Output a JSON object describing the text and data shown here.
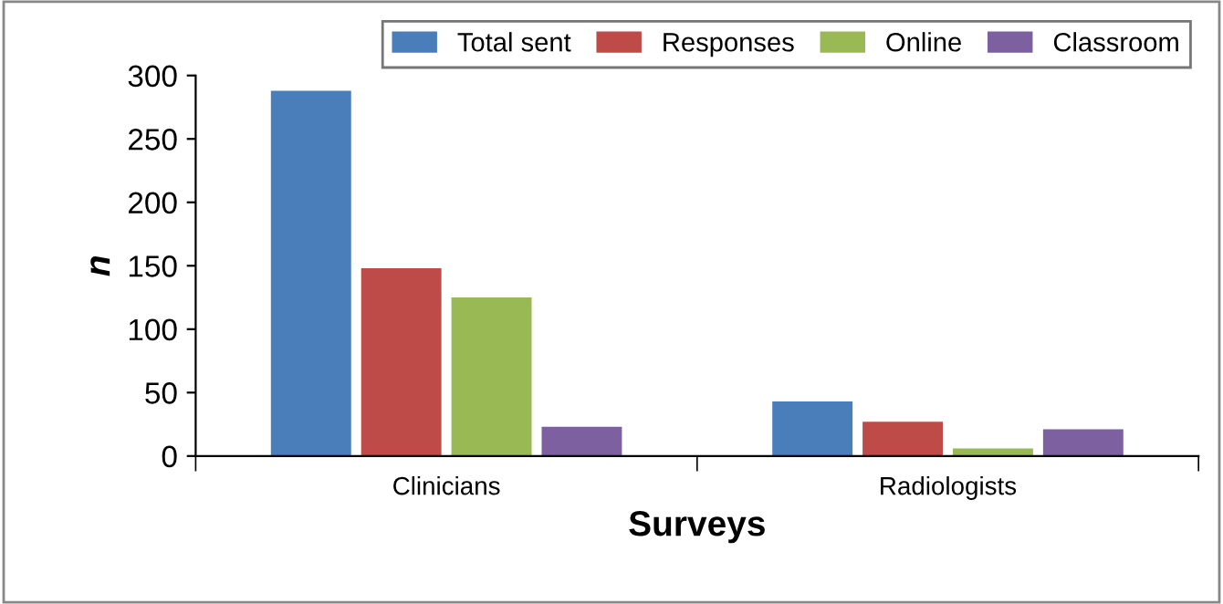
{
  "chart_data": {
    "type": "bar",
    "xlabel": "Surveys",
    "ylabel": "n",
    "categories": [
      "Clinicians",
      "Radiologists"
    ],
    "series": [
      {
        "name": "Total sent",
        "color": "#4a7ebb",
        "values": [
          288,
          43
        ]
      },
      {
        "name": "Responses",
        "color": "#be4b48",
        "values": [
          148,
          27
        ]
      },
      {
        "name": "Online",
        "color": "#98b954",
        "values": [
          125,
          6
        ]
      },
      {
        "name": "Classroom",
        "color": "#7d60a0",
        "values": [
          23,
          21
        ]
      }
    ],
    "ylim": [
      0,
      300
    ],
    "yticks": [
      0,
      50,
      100,
      150,
      200,
      250,
      300
    ],
    "grid": false,
    "legend": "top right"
  }
}
